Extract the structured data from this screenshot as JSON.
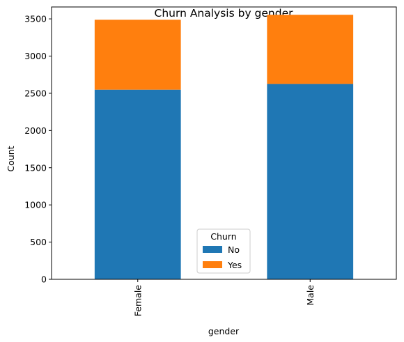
{
  "chart_data": {
    "type": "bar",
    "stacked": true,
    "title": "Churn Analysis by gender",
    "xlabel": "gender",
    "ylabel": "Count",
    "categories": [
      "Female",
      "Male"
    ],
    "series": [
      {
        "name": "No",
        "values": [
          2549,
          2625
        ],
        "color": "#1f77b4"
      },
      {
        "name": "Yes",
        "values": [
          939,
          930
        ],
        "color": "#ff7f0e"
      }
    ],
    "ylim": [
      0,
      3660
    ],
    "yticks": [
      0,
      500,
      1000,
      1500,
      2000,
      2500,
      3000,
      3500
    ],
    "grid": false,
    "legend": {
      "title": "Churn",
      "placement": "lower-center"
    }
  }
}
